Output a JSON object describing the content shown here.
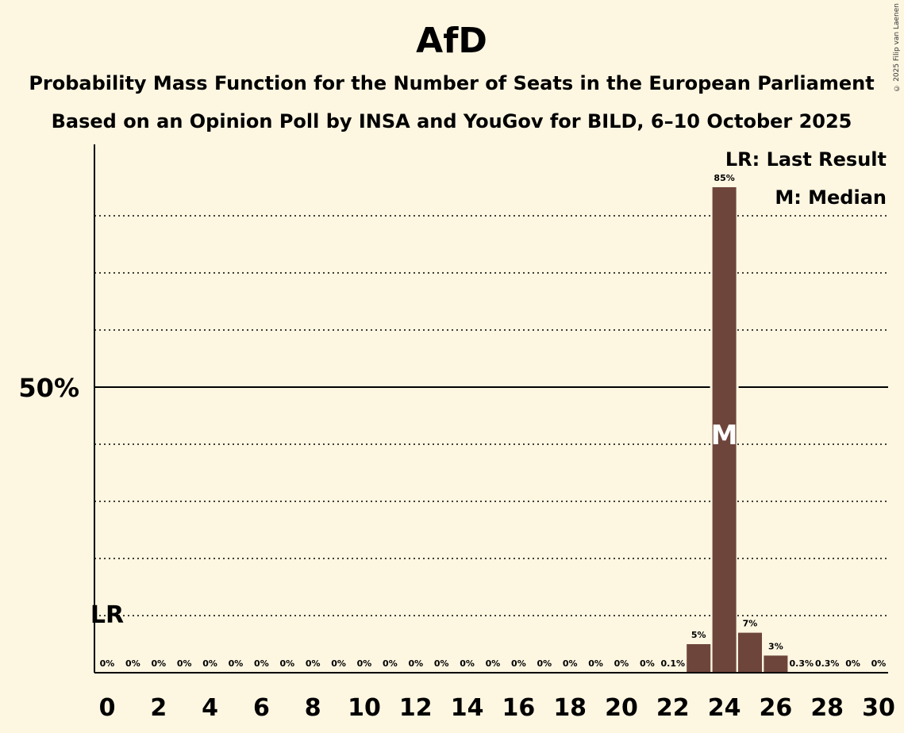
{
  "header": {
    "title": "AfD",
    "subtitle_1": "Probability Mass Function for the Number of Seats in the European Parliament",
    "subtitle_2": "Based on an Opinion Poll by INSA and YouGov for BILD, 6–10 October 2025"
  },
  "copyright": "© 2025 Filip van Laenen",
  "legend": {
    "last_result": "LR: Last Result",
    "median": "M: Median"
  },
  "markers": {
    "last_result_label": "LR",
    "last_result_seat": 0,
    "median_label": "M",
    "median_seat": 24
  },
  "colors": {
    "background": "#fdf6e1",
    "bar": "#6e453b",
    "axis": "#000000"
  },
  "chart_data": {
    "type": "bar",
    "x": [
      0,
      1,
      2,
      3,
      4,
      5,
      6,
      7,
      8,
      9,
      10,
      11,
      12,
      13,
      14,
      15,
      16,
      17,
      18,
      19,
      20,
      21,
      22,
      23,
      24,
      25,
      26,
      27,
      28,
      29,
      30
    ],
    "values": [
      0,
      0,
      0,
      0,
      0,
      0,
      0,
      0,
      0,
      0,
      0,
      0,
      0,
      0,
      0,
      0,
      0,
      0,
      0,
      0,
      0,
      0,
      0.1,
      5,
      85,
      7,
      3,
      0.3,
      0.3,
      0,
      0
    ],
    "data_labels": [
      "0%",
      "0%",
      "0%",
      "0%",
      "0%",
      "0%",
      "0%",
      "0%",
      "0%",
      "0%",
      "0%",
      "0%",
      "0%",
      "0%",
      "0%",
      "0%",
      "0%",
      "0%",
      "0%",
      "0%",
      "0%",
      "0%",
      "0.1%",
      "5%",
      "85%",
      "7%",
      "3%",
      "0.3%",
      "0.3%",
      "0%",
      "0%"
    ],
    "x_tick_labels": [
      "0",
      "2",
      "4",
      "6",
      "8",
      "10",
      "12",
      "14",
      "16",
      "18",
      "20",
      "22",
      "24",
      "26",
      "28",
      "30"
    ],
    "y_tick_labels": [
      "50%"
    ],
    "y_tick_value": 50,
    "ylim": [
      0,
      92.5
    ],
    "gridlines": [
      10,
      20,
      30,
      40,
      60,
      70,
      80
    ],
    "grid": "dotted",
    "legend_position": "top-right"
  }
}
